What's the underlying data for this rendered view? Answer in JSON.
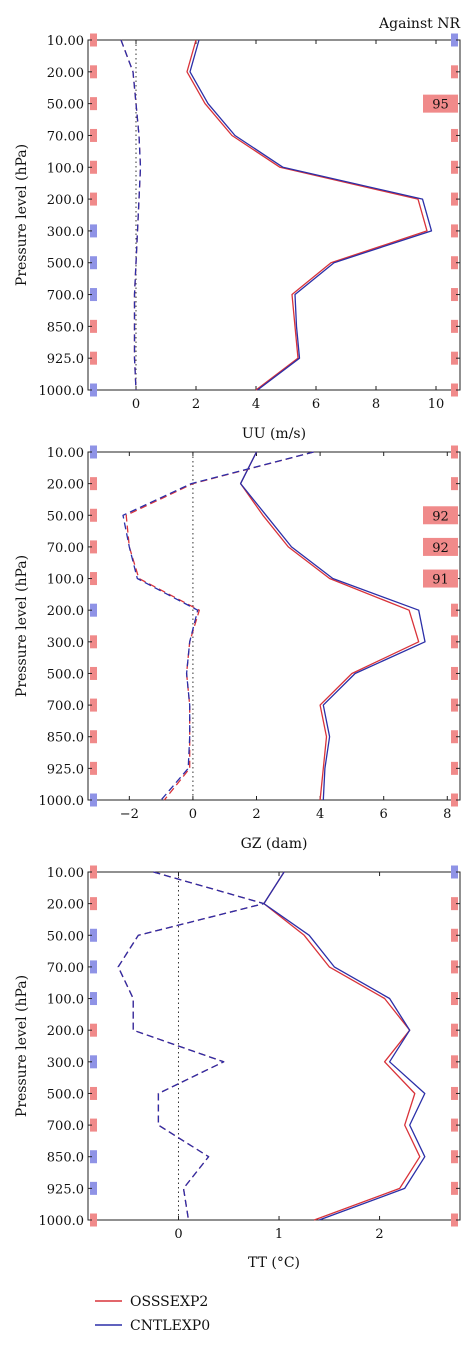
{
  "chart_data": [
    {
      "type": "line",
      "annotation": "Against NR",
      "xlabel": "UU (m/s)",
      "ylabel": "Pressure level (hPa)",
      "xlim": [
        -1.6,
        10.8
      ],
      "xticks": [
        0,
        2,
        4,
        6,
        8,
        10
      ],
      "xtick_labels": [
        "0",
        "2",
        "4",
        "6",
        "8",
        "10"
      ],
      "levels": [
        "10.00",
        "20.00",
        "50.00",
        "70.00",
        "100.0",
        "200.0",
        "300.0",
        "500.0",
        "700.0",
        "850.0",
        "925.0",
        "1000.0"
      ],
      "series": [
        {
          "name": "OSSSEXP2",
          "color": "#d9333a",
          "style": "solid",
          "values": [
            2.0,
            1.7,
            2.3,
            3.2,
            4.8,
            9.4,
            9.7,
            6.5,
            5.2,
            5.3,
            5.4,
            4.0
          ]
        },
        {
          "name": "CNTLEXP0",
          "color": "#2b2fa8",
          "style": "solid",
          "values": [
            2.1,
            1.8,
            2.4,
            3.3,
            4.9,
            9.55,
            9.85,
            6.6,
            5.3,
            5.35,
            5.45,
            4.05
          ]
        },
        {
          "name": "OSSSEXP2",
          "color": "#d9333a",
          "style": "dashed",
          "values": [
            -0.5,
            -0.1,
            0.0,
            0.1,
            0.15,
            0.1,
            0.05,
            0.0,
            -0.05,
            -0.05,
            -0.05,
            0.0
          ]
        },
        {
          "name": "CNTLEXP0",
          "color": "#2b2fa8",
          "style": "dashed",
          "values": [
            -0.5,
            -0.1,
            0.0,
            0.1,
            0.15,
            0.1,
            0.05,
            0.0,
            -0.05,
            -0.05,
            -0.05,
            0.0
          ]
        }
      ],
      "left_markers": [
        "red",
        "red",
        "red",
        "red",
        "red",
        "red",
        "blue",
        "blue",
        "blue",
        "red",
        "red",
        "blue"
      ],
      "right_markers": [
        "blue",
        "red",
        "red",
        "red",
        "red",
        "red",
        "red",
        "red",
        "red",
        "red",
        "red",
        "red"
      ],
      "significance_labels": [
        {
          "level": "50.00",
          "text": "95"
        }
      ]
    },
    {
      "type": "line",
      "xlabel": "GZ (dam)",
      "ylabel": "Pressure level (hPa)",
      "xlim": [
        -3.3,
        8.4
      ],
      "xticks": [
        -2,
        0,
        2,
        4,
        6,
        8
      ],
      "xtick_labels": [
        "−2",
        "0",
        "2",
        "4",
        "6",
        "8"
      ],
      "levels": [
        "10.00",
        "20.00",
        "50.00",
        "70.00",
        "100.0",
        "200.0",
        "300.0",
        "500.0",
        "700.0",
        "850.0",
        "925.0",
        "1000.0"
      ],
      "series": [
        {
          "name": "OSSSEXP2",
          "color": "#d9333a",
          "style": "solid",
          "values": [
            2.0,
            1.5,
            2.2,
            3.0,
            4.3,
            6.8,
            7.1,
            5.0,
            4.0,
            4.2,
            4.1,
            4.0
          ]
        },
        {
          "name": "CNTLEXP0",
          "color": "#2b2fa8",
          "style": "solid",
          "values": [
            2.0,
            1.5,
            2.3,
            3.1,
            4.4,
            7.1,
            7.3,
            5.1,
            4.1,
            4.3,
            4.15,
            4.1
          ]
        },
        {
          "name": "OSSSEXP2",
          "color": "#d9333a",
          "style": "dashed",
          "values": [
            3.8,
            0.0,
            -2.1,
            -2.0,
            -1.7,
            0.2,
            -0.1,
            -0.2,
            -0.1,
            -0.1,
            -0.1,
            -0.9
          ]
        },
        {
          "name": "CNTLEXP0",
          "color": "#2b2fa8",
          "style": "dashed",
          "values": [
            3.8,
            -0.05,
            -2.2,
            -2.0,
            -1.75,
            0.15,
            -0.1,
            -0.2,
            -0.1,
            -0.1,
            -0.15,
            -1.0
          ]
        }
      ],
      "left_markers": [
        "blue",
        "red",
        "red",
        "red",
        "red",
        "blue",
        "red",
        "red",
        "red",
        "red",
        "red",
        "blue"
      ],
      "right_markers": [
        "red",
        "red",
        "red",
        "red",
        "red",
        "red",
        "red",
        "red",
        "red",
        "red",
        "red",
        "red"
      ],
      "significance_labels": [
        {
          "level": "50.00",
          "text": "92"
        },
        {
          "level": "70.00",
          "text": "92"
        },
        {
          "level": "100.0",
          "text": "91"
        }
      ]
    },
    {
      "type": "line",
      "xlabel": "TT (°C)",
      "ylabel": "Pressure level (hPa)",
      "xlim": [
        -0.9,
        2.8
      ],
      "xticks": [
        0,
        1,
        2
      ],
      "xtick_labels": [
        "0",
        "1",
        "2"
      ],
      "levels": [
        "10.00",
        "20.00",
        "50.00",
        "70.00",
        "100.0",
        "200.0",
        "300.0",
        "500.0",
        "700.0",
        "850.0",
        "925.0",
        "1000.0"
      ],
      "series": [
        {
          "name": "OSSSEXP2",
          "color": "#d9333a",
          "style": "solid",
          "values": [
            1.05,
            0.85,
            1.25,
            1.5,
            2.05,
            2.3,
            2.05,
            2.35,
            2.25,
            2.4,
            2.2,
            1.35
          ]
        },
        {
          "name": "CNTLEXP0",
          "color": "#2b2fa8",
          "style": "solid",
          "values": [
            1.05,
            0.85,
            1.3,
            1.55,
            2.1,
            2.3,
            2.1,
            2.45,
            2.3,
            2.45,
            2.25,
            1.4
          ]
        },
        {
          "name": "OSSSEXP2",
          "color": "#d9333a",
          "style": "dashed",
          "values": [
            -0.25,
            0.85,
            -0.4,
            -0.6,
            -0.45,
            -0.45,
            0.45,
            -0.2,
            -0.2,
            0.3,
            0.05,
            0.1
          ]
        },
        {
          "name": "CNTLEXP0",
          "color": "#2b2fa8",
          "style": "dashed",
          "values": [
            -0.25,
            0.85,
            -0.4,
            -0.6,
            -0.45,
            -0.45,
            0.45,
            -0.2,
            -0.2,
            0.3,
            0.05,
            0.1
          ]
        }
      ],
      "left_markers": [
        "red",
        "red",
        "blue",
        "blue",
        "blue",
        "red",
        "blue",
        "red",
        "red",
        "blue",
        "blue",
        "red"
      ],
      "right_markers": [
        "blue",
        "red",
        "red",
        "red",
        "red",
        "red",
        "red",
        "red",
        "red",
        "red",
        "red",
        "red"
      ],
      "significance_labels": []
    }
  ],
  "legend": [
    {
      "name": "OSSSEXP2",
      "color": "#d9333a"
    },
    {
      "name": "CNTLEXP0",
      "color": "#2b2fa8"
    }
  ],
  "colors": {
    "red_marker": "#f08a8a",
    "blue_marker": "#8f93e6",
    "significance_bg": "#f08a8a"
  }
}
